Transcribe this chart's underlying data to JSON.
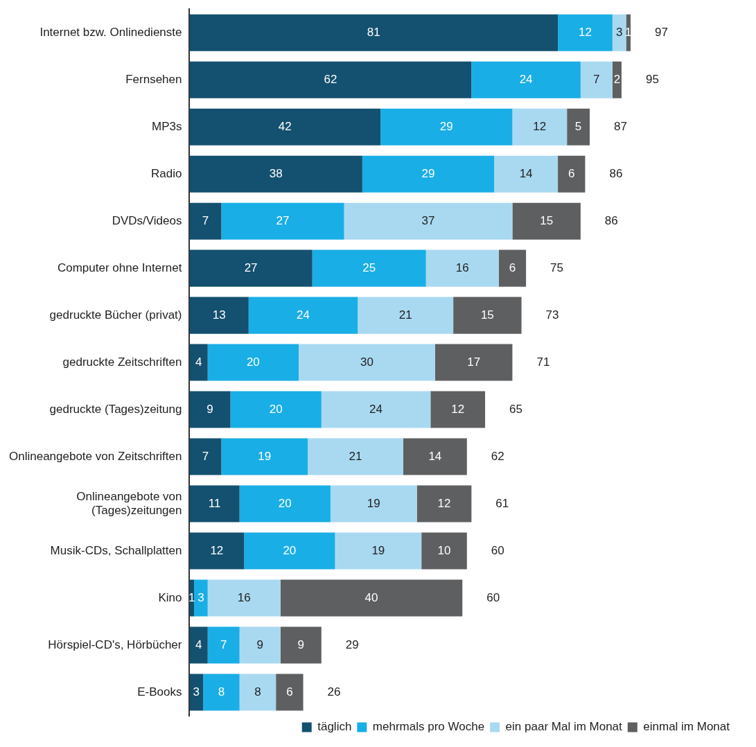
{
  "chart_data": {
    "type": "bar",
    "orientation": "horizontal",
    "stacked": true,
    "data_labels": true,
    "legend": "bottom",
    "grid": false,
    "categories": [
      "Internet bzw. Onlinedienste",
      "Fernsehen",
      "MP3s",
      "Radio",
      "DVDs/Videos",
      "Computer ohne Internet",
      "gedruckte Bücher (privat)",
      "gedruckte Zeitschriften",
      "gedruckte (Tages)zeitung",
      "Onlineangebote von Zeitschriften",
      "Onlineangebote von (Tages)zeitungen",
      "Musik-CDs, Schallplatten",
      "Kino",
      "Hörspiel-CD's, Hörbücher",
      "E-Books"
    ],
    "series": [
      {
        "name": "täglich",
        "color": "#14506f",
        "values": [
          81,
          62,
          42,
          38,
          7,
          27,
          13,
          4,
          9,
          7,
          11,
          12,
          1,
          4,
          3
        ]
      },
      {
        "name": "mehrmals pro Woche",
        "color": "#1aaee6",
        "values": [
          12,
          24,
          29,
          29,
          27,
          25,
          24,
          20,
          20,
          19,
          20,
          20,
          3,
          7,
          8
        ]
      },
      {
        "name": "ein paar Mal im Monat",
        "color": "#a9d9f1",
        "values": [
          3,
          7,
          12,
          14,
          37,
          16,
          21,
          30,
          24,
          21,
          19,
          19,
          16,
          9,
          8
        ]
      },
      {
        "name": "einmal im Monat",
        "color": "#5e5f61",
        "values": [
          1,
          2,
          5,
          6,
          15,
          6,
          15,
          17,
          12,
          14,
          12,
          10,
          40,
          9,
          6
        ]
      }
    ],
    "totals": [
      "97",
      "95",
      "87",
      "86",
      "86",
      "75",
      "73",
      "71",
      "65",
      "62",
      "61",
      "60",
      "60",
      "29",
      "26"
    ]
  }
}
